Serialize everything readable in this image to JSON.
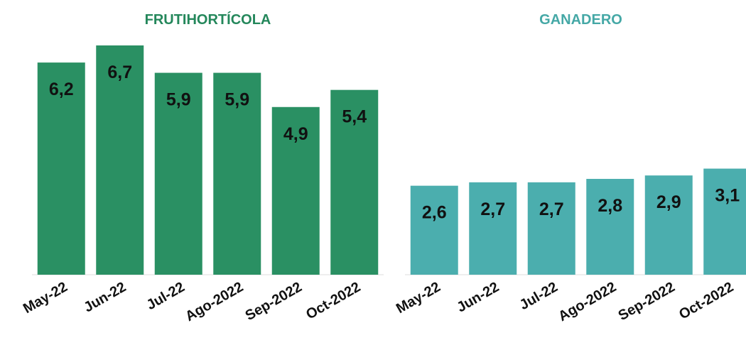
{
  "chart_data": [
    {
      "type": "bar",
      "title": "FRUTIHORTÍCOLA",
      "title_color": "#24875b",
      "color": "#2a9063",
      "categories": [
        "May-22",
        "Jun-22",
        "Jul-22",
        "Ago-2022",
        "Sep-2022",
        "Oct-2022"
      ],
      "values": [
        6.2,
        6.7,
        5.9,
        5.9,
        4.9,
        5.4
      ],
      "value_labels": [
        "6,2",
        "6,7",
        "5,9",
        "5,9",
        "4,9",
        "5,4"
      ]
    },
    {
      "type": "bar",
      "title": "GANADERO",
      "title_color": "#45a8a6",
      "color": "#4baeae",
      "categories": [
        "May-22",
        "Jun-22",
        "Jul-22",
        "Ago-2022",
        "Sep-2022",
        "Oct-2022"
      ],
      "values": [
        2.6,
        2.7,
        2.7,
        2.8,
        2.9,
        3.1
      ],
      "value_labels": [
        "2,6",
        "2,7",
        "2,7",
        "2,8",
        "2,9",
        "3,1"
      ]
    }
  ]
}
